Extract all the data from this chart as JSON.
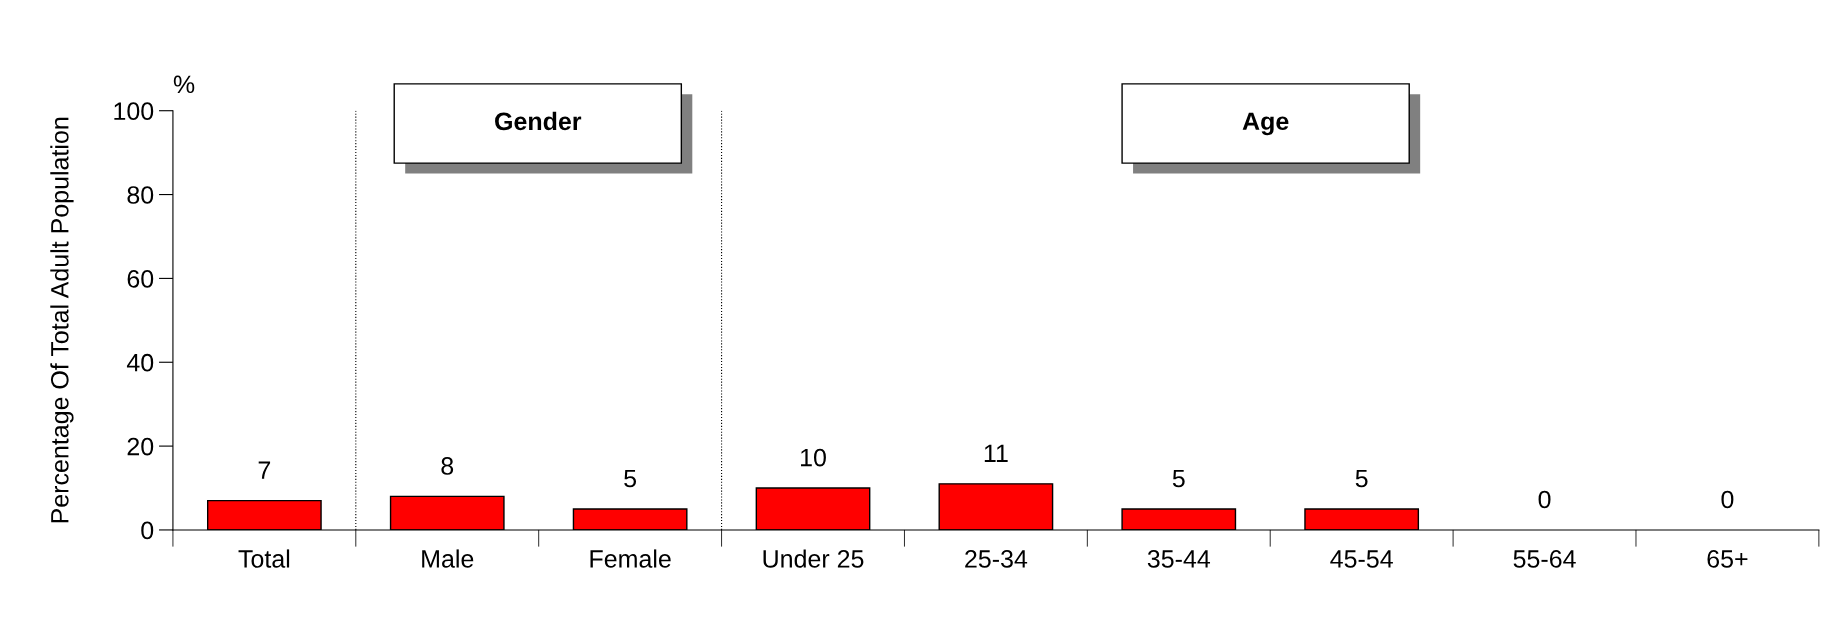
{
  "chart_data": {
    "type": "bar",
    "ylabel": "Percentage Of Total Adult Population",
    "categories": [
      "Total",
      "Male",
      "Female",
      "Under 25",
      "25-34",
      "35-44",
      "45-54",
      "55-64",
      "65+"
    ],
    "values": [
      7,
      8,
      5,
      10,
      11,
      5,
      5,
      0,
      0
    ],
    "color": "#ff0000",
    "ylim": [
      0,
      100
    ],
    "yticks": [
      0,
      20,
      40,
      60,
      80,
      100
    ],
    "grid": false,
    "data_labels": true,
    "annotations": [
      "%",
      "Gender",
      "Age"
    ]
  }
}
